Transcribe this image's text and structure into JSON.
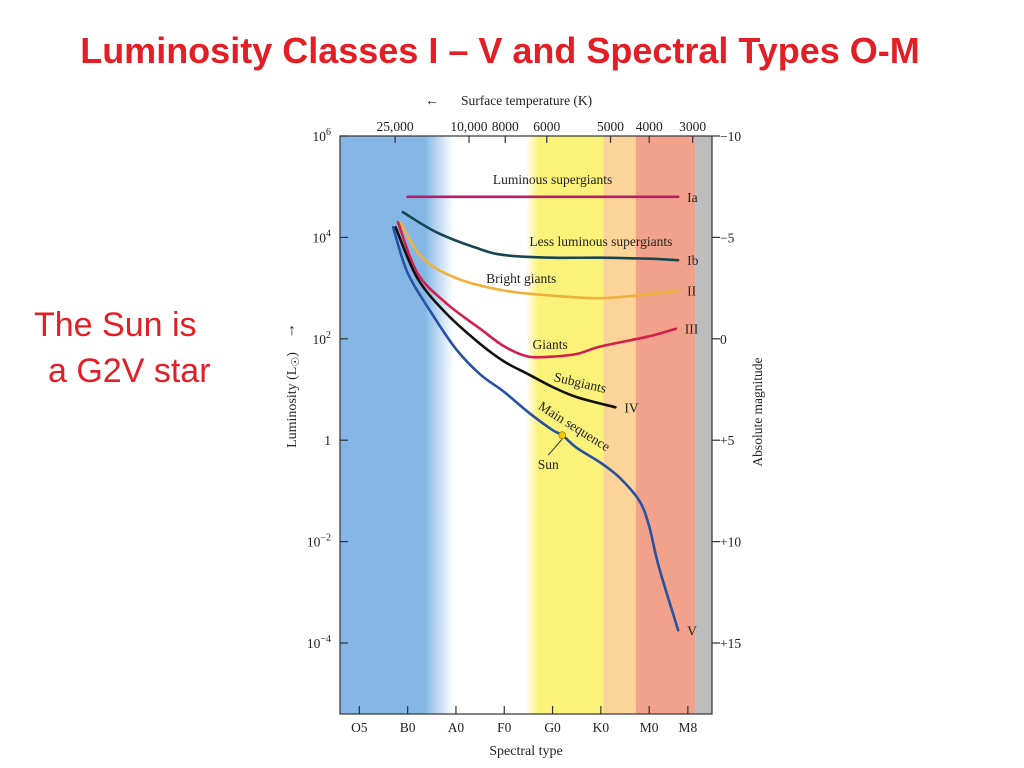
{
  "title": "Luminosity Classes I – V and Spectral Types O-M",
  "side_note": {
    "line1": "The Sun is",
    "line2": "a G2V star"
  },
  "colors": {
    "title": "#e31e24",
    "band_o_b": "#84b7e6",
    "band_a_f": "#ffffff",
    "band_g": "#fbf27a",
    "band_k": "#fcd49a",
    "band_m": "#f2a28a",
    "band_beyond": "#bdbdbd",
    "luminous_supergiants": "#b52068",
    "less_luminous_supergiants": "#174652",
    "bright_giants": "#f0b13a",
    "giants": "#d21f4d",
    "subgiants": "#111111",
    "main_sequence": "#2751a3",
    "sun_marker": "#f3c400"
  },
  "chart_data": {
    "type": "line",
    "x_units": "spectral type index (O5=0, B0=1, A0=2, F0=3, G0=4, K0=5, M0=6, M8=6.8)",
    "xlim": [
      -0.4,
      7.3
    ],
    "ylim_log10": [
      -5.4,
      6
    ],
    "y_scale": "log",
    "grid": false,
    "legend": "none (curves labeled directly)",
    "axes": {
      "xlabel": "Spectral type",
      "ylabel": "Luminosity (L",
      "ylabel_sub": "☉",
      "ylabel_close": ")",
      "right_label": "Absolute magnitude",
      "top_label": "Surface temperature (K)",
      "top_arrow": "←",
      "left_arrow": "↑"
    },
    "x_ticks": [
      {
        "label": "O5",
        "x": 0
      },
      {
        "label": "B0",
        "x": 1
      },
      {
        "label": "A0",
        "x": 2
      },
      {
        "label": "F0",
        "x": 3
      },
      {
        "label": "G0",
        "x": 4
      },
      {
        "label": "K0",
        "x": 5
      },
      {
        "label": "M0",
        "x": 6
      },
      {
        "label": "M8",
        "x": 6.8
      }
    ],
    "top_ticks": [
      {
        "label": "25,000",
        "x": 0.74
      },
      {
        "label": "10,000",
        "x": 2.27
      },
      {
        "label": "8000",
        "x": 3.02
      },
      {
        "label": "6000",
        "x": 3.88
      },
      {
        "label": "5000",
        "x": 5.2
      },
      {
        "label": "4000",
        "x": 6.0
      },
      {
        "label": "3000",
        "x": 6.9
      }
    ],
    "y_ticks_left": [
      {
        "base": "10",
        "exp": "6",
        "log": 6
      },
      {
        "base": "10",
        "exp": "4",
        "log": 4
      },
      {
        "base": "10",
        "exp": "2",
        "log": 2
      },
      {
        "base": "1",
        "exp": "",
        "log": 0
      },
      {
        "base": "10",
        "exp": "−2",
        "log": -2
      },
      {
        "base": "10",
        "exp": "−4",
        "log": -4
      }
    ],
    "y_ticks_right": [
      {
        "label": "−10",
        "log": 6
      },
      {
        "label": "−5",
        "log": 4
      },
      {
        "label": "0",
        "log": 2
      },
      {
        "label": "+5",
        "log": 0
      },
      {
        "label": "+10",
        "log": -2
      },
      {
        "label": "+15",
        "log": -4
      }
    ],
    "bands": [
      {
        "name": "o-b",
        "x0": -0.4,
        "x1": 1.8,
        "color_key": "band_o_b"
      },
      {
        "name": "a-f",
        "x0": 1.8,
        "x1": 3.6,
        "color_key": "band_a_f"
      },
      {
        "name": "g",
        "x0": 3.6,
        "x1": 5.05,
        "color_key": "band_g"
      },
      {
        "name": "k",
        "x0": 5.05,
        "x1": 5.72,
        "color_key": "band_k"
      },
      {
        "name": "m",
        "x0": 5.72,
        "x1": 6.95,
        "color_key": "band_m"
      },
      {
        "name": "beyond",
        "x0": 6.95,
        "x1": 7.3,
        "color_key": "band_beyond"
      }
    ],
    "series": [
      {
        "name": "Luminous supergiants",
        "class": "Ia",
        "color_key": "luminous_supergiants",
        "x": [
          1,
          3,
          5,
          6.6
        ],
        "y_log10": [
          4.8,
          4.8,
          4.8,
          4.8
        ]
      },
      {
        "name": "Less luminous supergiants",
        "class": "Ib",
        "color_key": "less_luminous_supergiants",
        "x": [
          0.9,
          1.6,
          2.4,
          3.0,
          4.0,
          5.0,
          6.0,
          6.6
        ],
        "y_log10": [
          4.5,
          4.1,
          3.8,
          3.65,
          3.6,
          3.6,
          3.58,
          3.55
        ]
      },
      {
        "name": "Bright giants",
        "class": "II",
        "color_key": "bright_giants",
        "x": [
          0.85,
          1.3,
          2.0,
          3.0,
          4.0,
          5.0,
          6.0,
          6.6
        ],
        "y_log10": [
          4.3,
          3.6,
          3.2,
          2.95,
          2.85,
          2.8,
          2.88,
          2.95
        ]
      },
      {
        "name": "Giants",
        "class": "III",
        "color_key": "giants",
        "x": [
          0.8,
          1.2,
          1.8,
          2.5,
          3.0,
          3.5,
          4.0,
          4.5,
          5.0,
          6.0,
          6.55
        ],
        "y_log10": [
          4.3,
          3.3,
          2.7,
          2.2,
          1.85,
          1.65,
          1.65,
          1.7,
          1.85,
          2.05,
          2.2
        ]
      },
      {
        "name": "Subgiants",
        "class": "IV",
        "color_key": "subgiants",
        "x": [
          0.75,
          1.2,
          1.8,
          2.5,
          3.0,
          3.5,
          4.0,
          4.5,
          5.3
        ],
        "y_log10": [
          4.2,
          3.2,
          2.5,
          1.9,
          1.55,
          1.3,
          1.05,
          0.85,
          0.65
        ]
      },
      {
        "name": "Main sequence",
        "class": "V",
        "color_key": "main_sequence",
        "x": [
          0.7,
          1.0,
          1.5,
          2.0,
          2.5,
          3.0,
          3.5,
          4.0,
          4.2,
          4.5,
          5.0,
          5.4,
          5.8,
          6.0,
          6.2,
          6.6
        ],
        "y_log10": [
          4.2,
          3.3,
          2.5,
          1.8,
          1.3,
          0.95,
          0.55,
          0.2,
          0.1,
          -0.15,
          -0.45,
          -0.75,
          -1.2,
          -1.7,
          -2.5,
          -3.75
        ]
      }
    ],
    "sun": {
      "label": "Sun",
      "x": 4.2,
      "y_log10": 0.1
    },
    "annotations": [
      {
        "text": "Luminous supergiants",
        "x": 4.0,
        "y_log10": 5.05,
        "anchor": "middle",
        "rotate": 0
      },
      {
        "text": "Less luminous supergiants",
        "x": 5.0,
        "y_log10": 3.83,
        "anchor": "middle",
        "rotate": 0
      },
      {
        "text": "Bright giants",
        "x": 3.35,
        "y_log10": 3.1,
        "anchor": "middle",
        "rotate": 0
      },
      {
        "text": "Giants",
        "x": 3.95,
        "y_log10": 1.8,
        "anchor": "middle",
        "rotate": 0
      },
      {
        "text": "Subgiants",
        "x": 4.55,
        "y_log10": 1.05,
        "anchor": "middle",
        "rotate": 13
      },
      {
        "text": "Main sequence",
        "x": 4.4,
        "y_log10": 0.2,
        "anchor": "middle",
        "rotate": 32
      }
    ]
  }
}
